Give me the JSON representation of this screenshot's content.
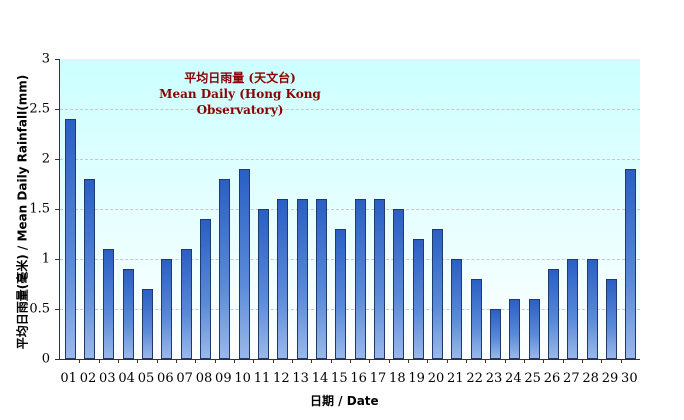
{
  "chart_data": {
    "type": "bar",
    "title": "平均日雨量 (天文台)",
    "subtitle": "Mean Daily (Hong Kong Observatory)",
    "xlabel": "日期 / Date",
    "ylabel": "平均日雨量(毫米) / Mean Daily Rainfall(mm)",
    "ylim": [
      0,
      3
    ],
    "yticks": [
      "0",
      "0.5",
      "1",
      "1.5",
      "2",
      "2.5",
      "3"
    ],
    "grid": true,
    "categories": [
      "01",
      "02",
      "03",
      "04",
      "05",
      "06",
      "07",
      "08",
      "09",
      "10",
      "11",
      "12",
      "13",
      "14",
      "15",
      "16",
      "17",
      "18",
      "19",
      "20",
      "21",
      "22",
      "23",
      "24",
      "25",
      "26",
      "27",
      "28",
      "29",
      "30"
    ],
    "series": [
      {
        "name": "Mean Daily Rainfall (mm)",
        "values": [
          2.4,
          1.8,
          1.1,
          0.9,
          0.7,
          1.0,
          1.1,
          1.4,
          1.8,
          1.9,
          1.5,
          1.6,
          1.6,
          1.6,
          1.3,
          1.6,
          1.6,
          1.5,
          1.2,
          1.3,
          1.0,
          0.8,
          0.5,
          0.6,
          0.6,
          0.9,
          1.0,
          1.0,
          0.8,
          1.9
        ]
      }
    ],
    "colors": {
      "bar": "#2a5fc4",
      "plot_background_top": "#ccffff",
      "title": "#8b0000"
    }
  }
}
